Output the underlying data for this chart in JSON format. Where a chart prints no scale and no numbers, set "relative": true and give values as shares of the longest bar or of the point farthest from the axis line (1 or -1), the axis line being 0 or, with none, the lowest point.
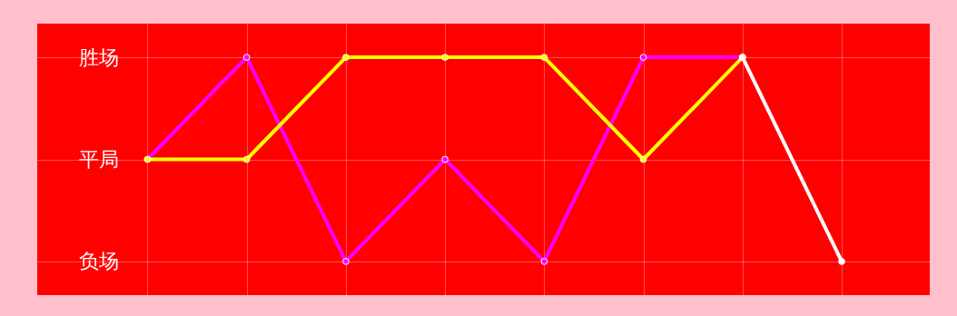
{
  "chart_data": {
    "type": "line",
    "relative": true,
    "categories": [
      null,
      null,
      null,
      null,
      null,
      null,
      null,
      null
    ],
    "y_categories": [
      "胜场",
      "平局",
      "负场"
    ],
    "series": [
      {
        "color": "#ff00ff",
        "values": [
          0.5,
          1,
          0,
          0.5,
          0,
          1,
          1,
          null
        ]
      },
      {
        "color": "#ffff00",
        "values": [
          0.5,
          0.5,
          1,
          1,
          1,
          0.5,
          1,
          null
        ]
      },
      {
        "color": "#ffffff",
        "values": [
          null,
          null,
          null,
          null,
          null,
          null,
          1,
          0
        ]
      }
    ],
    "grid": true,
    "tick_labels": "y",
    "marker": "circle",
    "line_style": "solid"
  }
}
